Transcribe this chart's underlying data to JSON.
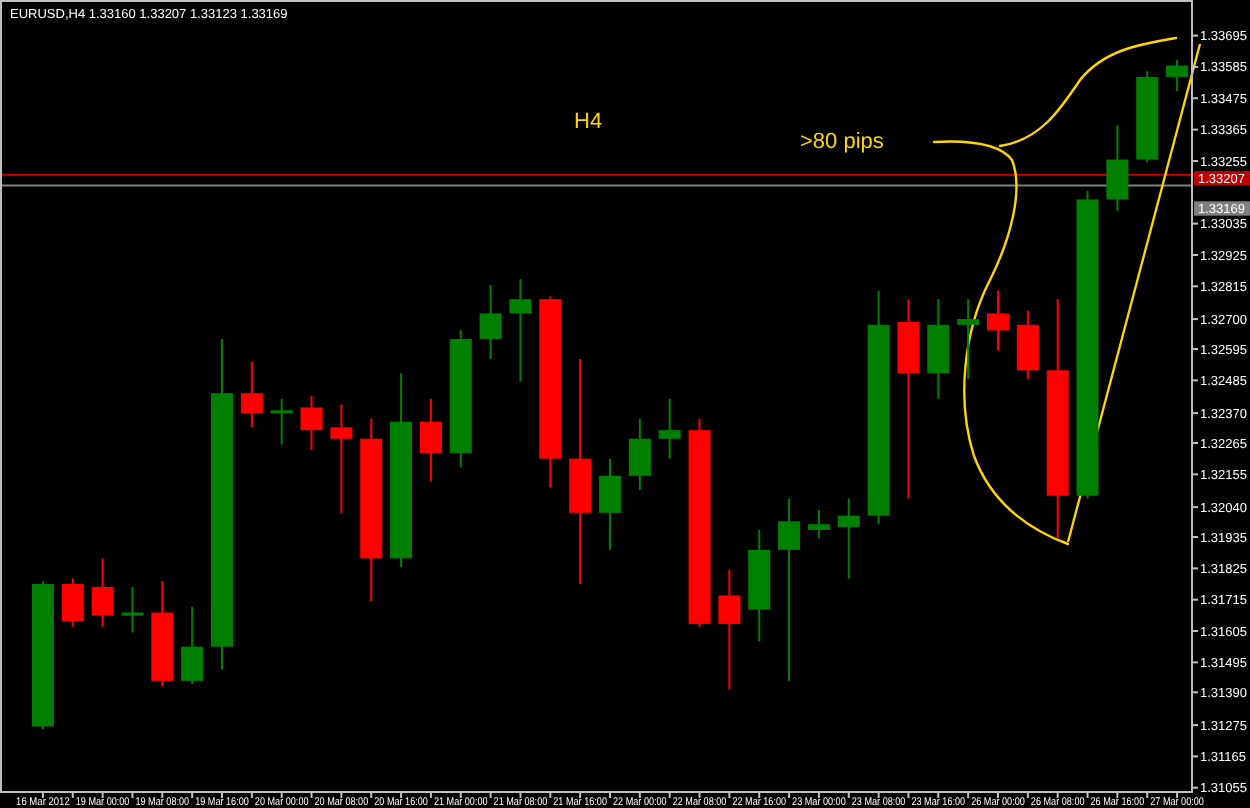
{
  "chart_data": {
    "type": "candlestick",
    "title": "EURUSD,H4 1.33160 1.33207 1.33123 1.33169",
    "annotations": [
      "H4",
      ">80 pips"
    ],
    "categories": [
      "16 Mar 2012",
      null,
      "19 Mar 00:00",
      null,
      "19 Mar 08:00",
      null,
      "19 Mar 16:00",
      null,
      "20 Mar 00:00",
      null,
      "20 Mar 08:00",
      null,
      "20 Mar 16:00",
      null,
      "21 Mar 00:00",
      null,
      "21 Mar 08:00",
      null,
      "21 Mar 16:00",
      null,
      "22 Mar 00:00",
      null,
      "22 Mar 08:00",
      null,
      "22 Mar 16:00",
      null,
      "23 Mar 00:00",
      null,
      "23 Mar 08:00",
      null,
      "23 Mar 16:00",
      null,
      "26 Mar 00:00",
      null,
      "26 Mar 08:00",
      null,
      "26 Mar 16:00",
      null,
      "27 Mar 00:00"
    ],
    "ohlc": [
      [
        1.3127,
        1.3178,
        1.3126,
        1.3177
      ],
      [
        1.3177,
        1.3179,
        1.3162,
        1.3164
      ],
      [
        1.3176,
        1.3186,
        1.3162,
        1.3166
      ],
      [
        1.3166,
        1.3176,
        1.316,
        1.3167
      ],
      [
        1.3167,
        1.3178,
        1.3141,
        1.3143
      ],
      [
        1.3143,
        1.3169,
        1.3142,
        1.3155
      ],
      [
        1.3155,
        1.3263,
        1.3147,
        1.3244
      ],
      [
        1.3244,
        1.3255,
        1.3232,
        1.3237
      ],
      [
        1.3237,
        1.3242,
        1.3226,
        1.3238
      ],
      [
        1.3239,
        1.3243,
        1.3224,
        1.3231
      ],
      [
        1.3232,
        1.324,
        1.3202,
        1.3228
      ],
      [
        1.3228,
        1.3235,
        1.3171,
        1.3186
      ],
      [
        1.3186,
        1.3251,
        1.3183,
        1.3234
      ],
      [
        1.3234,
        1.3242,
        1.3213,
        1.3223
      ],
      [
        1.3223,
        1.3266,
        1.3218,
        1.3263
      ],
      [
        1.3263,
        1.3282,
        1.3256,
        1.3272
      ],
      [
        1.3272,
        1.3284,
        1.3248,
        1.3277
      ],
      [
        1.3277,
        1.3278,
        1.3211,
        1.3221
      ],
      [
        1.3221,
        1.3256,
        1.3177,
        1.3202
      ],
      [
        1.3202,
        1.3221,
        1.3189,
        1.3215
      ],
      [
        1.3215,
        1.3235,
        1.321,
        1.3228
      ],
      [
        1.3228,
        1.3242,
        1.3221,
        1.3231
      ],
      [
        1.3231,
        1.3235,
        1.3162,
        1.3163
      ],
      [
        1.3173,
        1.3182,
        1.314,
        1.3163
      ],
      [
        1.3168,
        1.3196,
        1.3157,
        1.3189
      ],
      [
        1.3189,
        1.3207,
        1.3143,
        1.3199
      ],
      [
        1.3196,
        1.3203,
        1.3193,
        1.3198
      ],
      [
        1.3197,
        1.3207,
        1.3179,
        1.3201
      ],
      [
        1.3201,
        1.328,
        1.3198,
        1.3268
      ],
      [
        1.3269,
        1.3277,
        1.3207,
        1.3251
      ],
      [
        1.3251,
        1.3277,
        1.3242,
        1.3268
      ],
      [
        1.3268,
        1.3277,
        1.3249,
        1.327
      ],
      [
        1.3272,
        1.328,
        1.3259,
        1.3266
      ],
      [
        1.3268,
        1.3273,
        1.3249,
        1.3252
      ],
      [
        1.3252,
        1.3277,
        1.3193,
        1.3208
      ],
      [
        1.3208,
        1.3315,
        1.3207,
        1.3312
      ],
      [
        1.3312,
        1.3338,
        1.3308,
        1.3326
      ],
      [
        1.3326,
        1.3357,
        1.3325,
        1.3355
      ],
      [
        1.3355,
        1.3361,
        1.335,
        1.3359
      ]
    ],
    "ylim": [
      1.3104,
      1.3382
    ],
    "yticks": [
      1.31055,
      1.31165,
      1.31275,
      {
        "value": 1.3139,
        "label": "1.31390"
      },
      1.31495,
      1.31605,
      1.31715,
      1.31825,
      1.31935,
      {
        "value": 1.3204,
        "label": "1.32040"
      },
      1.32155,
      1.32265,
      {
        "value": 1.3237,
        "label": "1.32370"
      },
      1.32485,
      1.32595,
      {
        "value": 1.327,
        "label": "1.32700"
      },
      1.32815,
      1.32925,
      1.33035,
      1.33255,
      1.33365,
      1.33475,
      1.33585,
      1.33695
    ],
    "ref_lines": [
      {
        "axis": "y",
        "value": 1.33207,
        "label": "1.33207",
        "color": "#c00000"
      },
      {
        "axis": "y",
        "value": 1.33169,
        "label": "1.33169",
        "color": "#808080"
      }
    ],
    "grid": false
  }
}
